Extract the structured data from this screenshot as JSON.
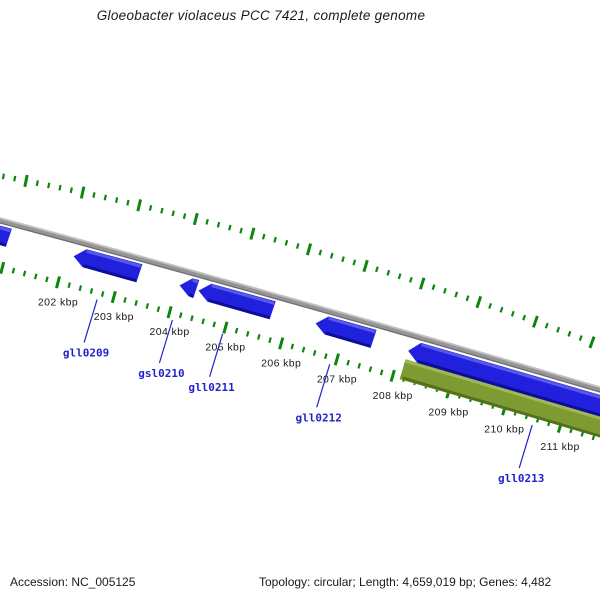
{
  "chart_data": {
    "type": "genome-feature-track",
    "title": "Gloeobacter violaceus PCC 7421, complete genome",
    "topology": "circular",
    "length_bp": "4,659,019",
    "gene_count": "4,482",
    "accession": "NC_005125",
    "axis": {
      "unit": "kbp",
      "minor_tick_kbp": 0.2,
      "major_tick_kbp": 1,
      "visible_start_kbp": 201,
      "visible_end_kbp": 211.8,
      "major_tick_values_kbp": [
        202,
        203,
        204,
        205,
        206,
        207,
        208,
        209,
        210,
        211
      ],
      "major_tick_labels": [
        "202 kbp",
        "203 kbp",
        "204 kbp",
        "205 kbp",
        "206 kbp",
        "207 kbp",
        "208 kbp",
        "209 kbp",
        "210 kbp",
        "211 kbp"
      ]
    },
    "features": [
      {
        "label": "",
        "start_kbp": 200.4,
        "end_kbp": 201.12,
        "strand": "reverse",
        "color": "blue"
      },
      {
        "label": "gll0209",
        "start_kbp": 202.28,
        "end_kbp": 203.46,
        "strand": "reverse",
        "color": "blue",
        "label_attach_kbp": 202.7
      },
      {
        "label": "gsl0210",
        "start_kbp": 204.18,
        "end_kbp": 204.48,
        "strand": "reverse",
        "color": "blue",
        "label_attach_kbp": 204.05
      },
      {
        "label": "gll0211",
        "start_kbp": 204.52,
        "end_kbp": 205.85,
        "strand": "reverse",
        "color": "blue",
        "label_attach_kbp": 204.95
      },
      {
        "label": "gll0212",
        "start_kbp": 206.62,
        "end_kbp": 207.66,
        "strand": "reverse",
        "color": "blue",
        "label_attach_kbp": 206.87
      },
      {
        "label": "",
        "start_kbp": 208.28,
        "end_kbp": 212.6,
        "strand": "reverse",
        "color": "blue",
        "long": true
      },
      {
        "label": "gll0213",
        "start_kbp": 208.18,
        "end_kbp": 212.8,
        "strand": "forward",
        "color": "olive",
        "long": true,
        "label_attach_kbp": 210.5
      }
    ]
  },
  "colors": {
    "tick_green": "#0e860e",
    "backbone_gray": "#959595",
    "backbone_light": "#c2c2c2",
    "backbone_dark": "#6f6f6f",
    "blue_body": "#2121dd",
    "blue_light": "#5858ea",
    "blue_dark": "#0d0d96",
    "olive_body": "#7d9b31",
    "olive_light": "#9fb855",
    "olive_dark": "#55701c",
    "gene_label_blue": "#2222cc",
    "text_dark": "#1a1a1a"
  },
  "footer": {
    "accession": "Accession: NC_005125",
    "stats": "Topology: circular; Length: 4,659,019 bp; Genes: 4,482"
  }
}
